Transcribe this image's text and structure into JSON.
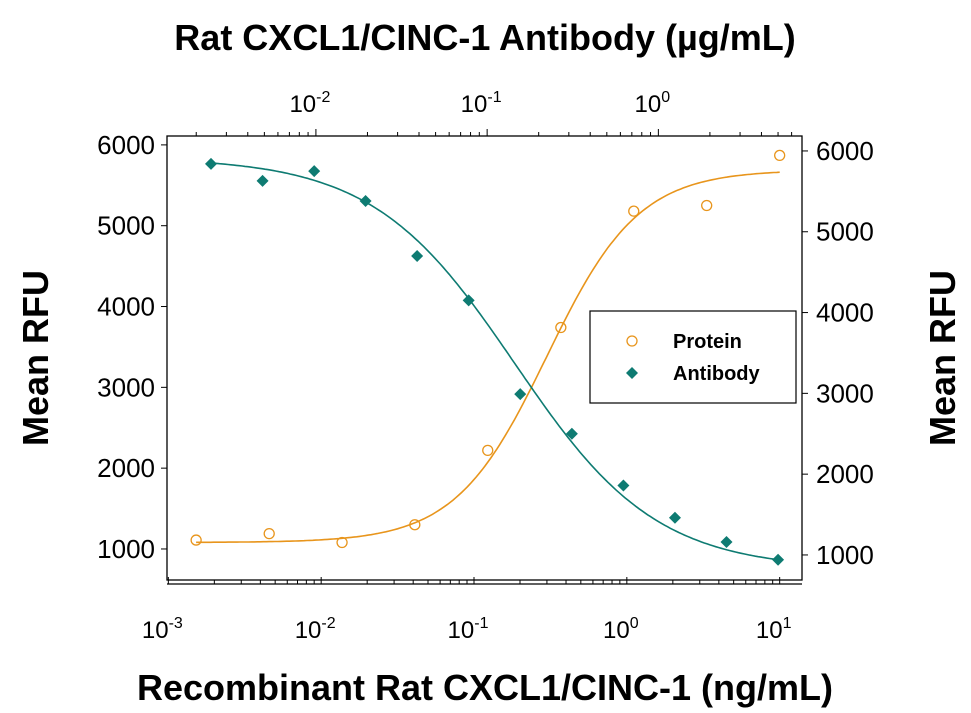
{
  "chart_data": {
    "type": "scatter",
    "title": "Rat CXCL1/CINC-1 Antibody (µg/mL)",
    "xlabel": "Recombinant Rat CXCL1/CINC-1 (ng/mL)",
    "ylabel": "Mean RFU",
    "ylabel_right": "Mean RFU",
    "x_scale": "log",
    "xlim": [
      0.00098,
      14
    ],
    "x_ticks": [
      {
        "value": 0.001,
        "base": "10",
        "exp": "-3"
      },
      {
        "value": 0.01,
        "base": "10",
        "exp": "-2"
      },
      {
        "value": 0.1,
        "base": "10",
        "exp": "-1"
      },
      {
        "value": 1,
        "base": "10",
        "exp": "0"
      },
      {
        "value": 10,
        "base": "10",
        "exp": "1"
      }
    ],
    "x2_scale": "log",
    "x2lim": [
      0.00135,
      6.9
    ],
    "x2_ticks": [
      {
        "value": 0.01,
        "base": "10",
        "exp": "-2"
      },
      {
        "value": 0.1,
        "base": "10",
        "exp": "-1"
      },
      {
        "value": 1,
        "base": "10",
        "exp": "0"
      }
    ],
    "ylim": [
      616,
      6110
    ],
    "y_ticks": [
      1000,
      2000,
      3000,
      4000,
      5000,
      6000
    ],
    "y2lim": [
      690,
      6185
    ],
    "y2_ticks": [
      1000,
      2000,
      3000,
      4000,
      5000,
      6000
    ],
    "grid": false,
    "legend_position": "center-right",
    "series": [
      {
        "name": "Protein",
        "axis": "bottom-left",
        "marker": "open-circle",
        "color": "#E8951C",
        "x": [
          0.00152,
          0.00457,
          0.0137,
          0.041,
          0.123,
          0.37,
          1.11,
          3.33,
          10
        ],
        "y": [
          1110,
          1190,
          1080,
          1300,
          2220,
          3740,
          5180,
          5250,
          5870
        ],
        "fit": {
          "bottom": 1080,
          "top": 5690,
          "ec50": 0.3,
          "hill": 1.45
        }
      },
      {
        "name": "Antibody",
        "axis": "top-right",
        "marker": "filled-diamond",
        "color": "#0E7B72",
        "x": [
          0.00244,
          0.00488,
          0.00977,
          0.0195,
          0.039,
          0.078,
          0.156,
          0.3125,
          0.625,
          1.25,
          2.5,
          5
        ],
        "y": [
          5840,
          5630,
          5750,
          5380,
          4700,
          4150,
          2990,
          2500,
          1860,
          1460,
          1160,
          940
        ],
        "fit": {
          "bottom": 820,
          "top": 5920,
          "ec50": 0.145,
          "hill": 1.05
        }
      }
    ]
  }
}
